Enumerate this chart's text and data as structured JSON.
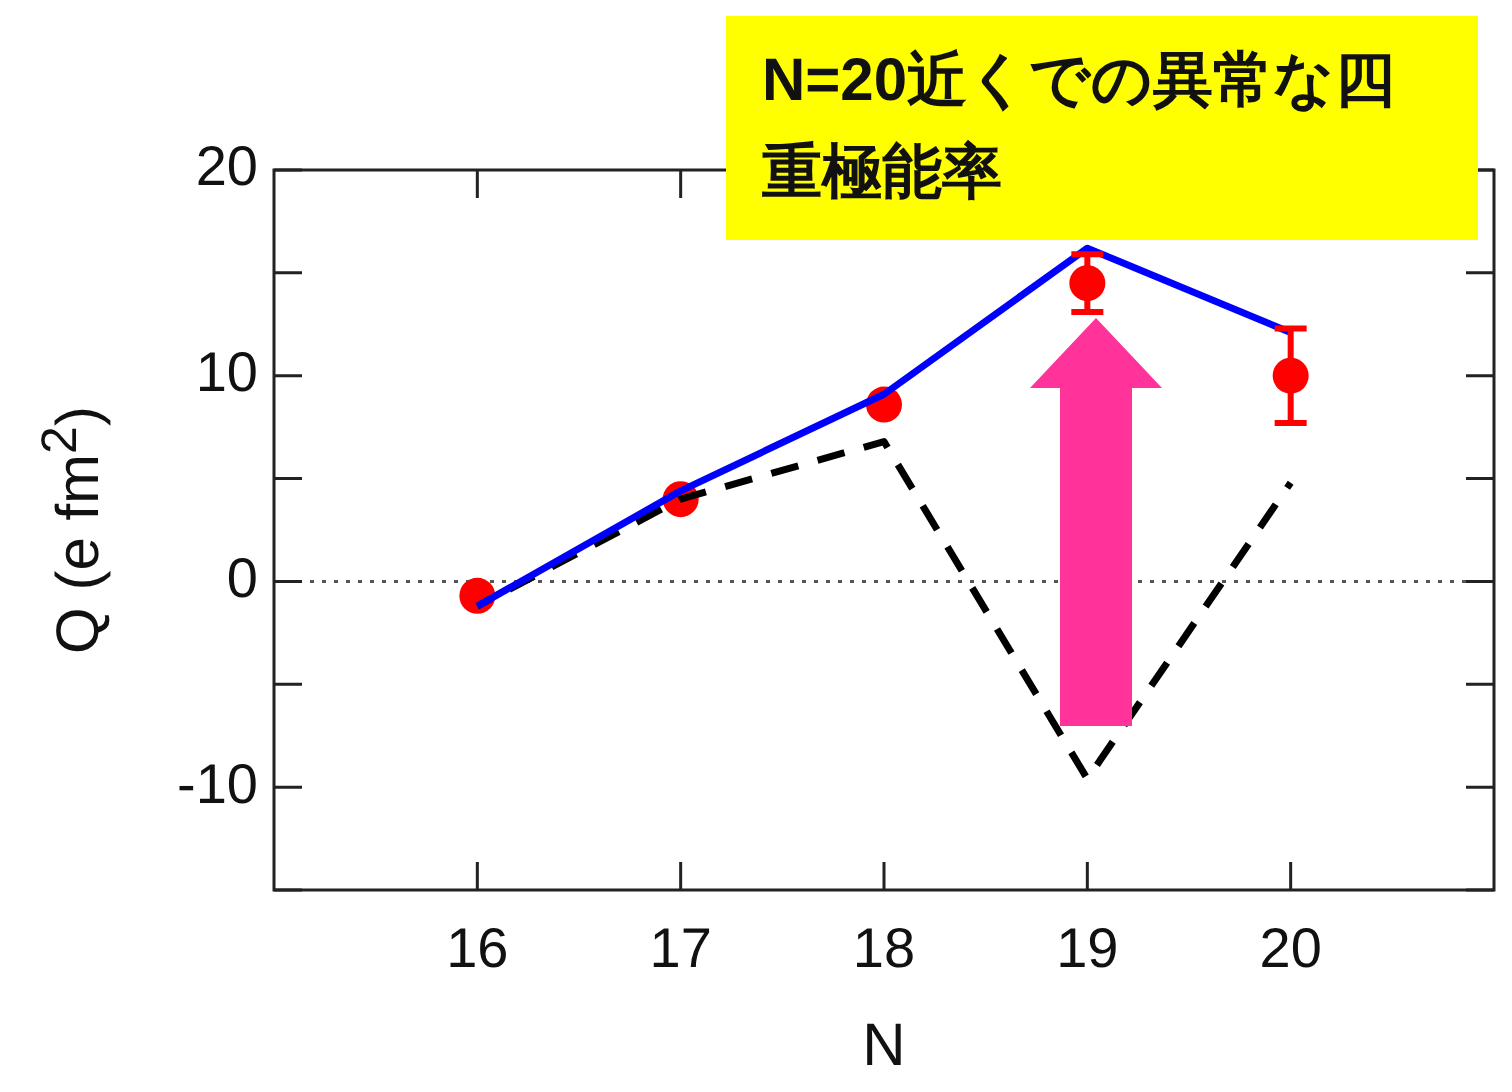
{
  "chart_data": {
    "type": "line",
    "title": "N=20近くでの異常な四重極能率",
    "xlabel": "N",
    "ylabel": "Q  (e fm$^{2}$)",
    "x": [
      16,
      17,
      18,
      19,
      20
    ],
    "series": [
      {
        "type": "line",
        "color": "#0000ff",
        "line_style": "solid",
        "marker": "none",
        "values": [
          -1.2,
          4.4,
          9.1,
          16.2,
          12.1
        ]
      },
      {
        "type": "line",
        "color": "#000000",
        "line_style": "dashed",
        "marker": "none",
        "values": [
          -1.2,
          4.0,
          6.8,
          -9.6,
          4.8
        ]
      },
      {
        "type": "scatter",
        "color": "#ff0000",
        "marker": "circle",
        "values": [
          -0.7,
          4.0,
          8.6,
          14.5,
          10.0
        ],
        "errors": [
          null,
          null,
          null,
          1.4,
          2.3
        ]
      }
    ],
    "xlim": [
      15,
      21
    ],
    "xticks": [
      16,
      17,
      18,
      19,
      20
    ],
    "ylim": [
      -15,
      20
    ],
    "yticks": [
      {
        "value": -15,
        "label": null
      },
      -10,
      {
        "value": -5,
        "label": null
      },
      0,
      {
        "value": 5,
        "label": null
      },
      10,
      {
        "value": 15,
        "label": null
      },
      20
    ],
    "ref_lines": [
      {
        "axis": "y",
        "value": 0,
        "color": "#555555",
        "line_style": "dotted"
      }
    ],
    "grid": false,
    "legend": false
  }
}
